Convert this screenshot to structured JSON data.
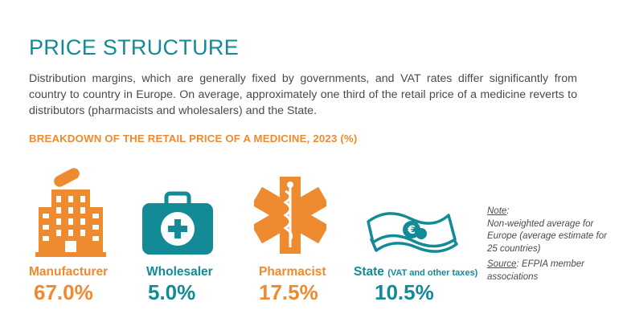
{
  "page": {
    "title": "PRICE STRUCTURE",
    "intro": "Distribution margins, which are generally fixed by governments, and VAT rates differ significantly from country to country in Europe. On average, approximately one third of the retail price of a medicine reverts to distributors (pharmacists and wholesalers) and the State."
  },
  "chart_data": {
    "type": "table",
    "title": "BREAKDOWN OF THE RETAIL PRICE OF A MEDICINE, 2023 (%)",
    "categories": [
      "Manufacturer",
      "Wholesaler",
      "Pharmacist",
      "State"
    ],
    "category_notes": [
      "",
      "",
      "",
      "(VAT and other taxes)"
    ],
    "values": [
      67.0,
      5.0,
      17.5,
      10.5
    ],
    "value_labels": [
      "67.0%",
      "5.0%",
      "17.5%",
      "10.5%"
    ],
    "icons": [
      "factory-building-icon",
      "first-aid-kit-icon",
      "star-of-life-icon",
      "banknotes-euro-icon"
    ],
    "colors": {
      "orange": "#ee8a2f",
      "teal": "#128b96"
    }
  },
  "note": {
    "label": "Note",
    "text": "Non-weighted average for Europe (average estimate for 25 countries)",
    "source_label": "Source",
    "source_text": "EFPIA member associations"
  }
}
